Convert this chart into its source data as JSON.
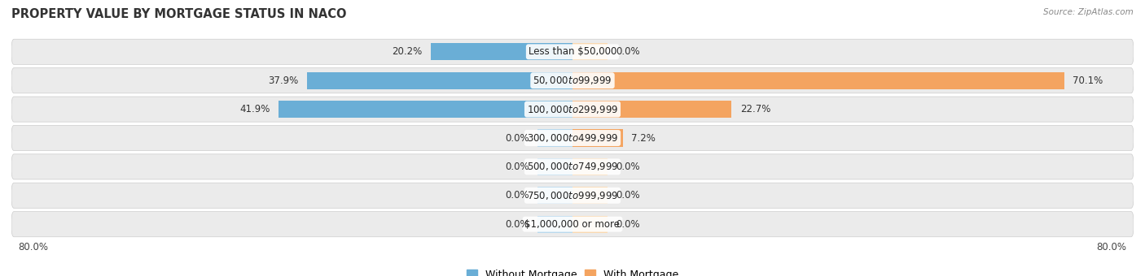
{
  "title": "PROPERTY VALUE BY MORTGAGE STATUS IN NACO",
  "source": "Source: ZipAtlas.com",
  "categories": [
    "Less than $50,000",
    "$50,000 to $99,999",
    "$100,000 to $299,999",
    "$300,000 to $499,999",
    "$500,000 to $749,999",
    "$750,000 to $999,999",
    "$1,000,000 or more"
  ],
  "without_mortgage": [
    20.2,
    37.9,
    41.9,
    0.0,
    0.0,
    0.0,
    0.0
  ],
  "with_mortgage": [
    0.0,
    70.1,
    22.7,
    7.2,
    0.0,
    0.0,
    0.0
  ],
  "xlim": [
    -80,
    80
  ],
  "color_without": "#6aaed6",
  "color_with": "#f4a460",
  "color_without_light": "#b8d8ed",
  "color_with_light": "#f9d8b0",
  "row_bg": "#ebebeb",
  "title_fontsize": 10.5,
  "label_fontsize": 8.5,
  "legend_fontsize": 9,
  "stub_size": 5.0
}
